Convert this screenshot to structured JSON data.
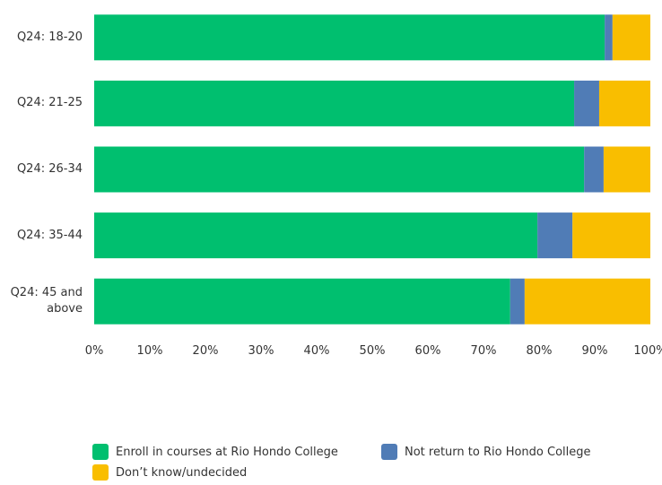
{
  "chart_data": {
    "type": "stacked-bar-horizontal",
    "categories": [
      "Q24: 18-20",
      "Q24: 21-25",
      "Q24: 26-34",
      "Q24: 35-44",
      "Q24: 45 and above"
    ],
    "series": [
      {
        "name": "Enroll in courses at Rio Hondo College",
        "color": "#00bf6f",
        "values": [
          91.8,
          86.3,
          88.1,
          79.7,
          74.8
        ]
      },
      {
        "name": "Not return to Rio Hondo College",
        "color": "#507cb6",
        "values": [
          1.4,
          4.5,
          3.5,
          6.3,
          2.6
        ]
      },
      {
        "name": "Don’t know/undecided",
        "color": "#f9be00",
        "values": [
          6.8,
          9.2,
          8.4,
          14.0,
          22.6
        ]
      }
    ],
    "xlim": [
      0,
      100
    ],
    "xticks": [
      {
        "value": 0,
        "label": "0%"
      },
      {
        "value": 10,
        "label": "10%"
      },
      {
        "value": 20,
        "label": "20%"
      },
      {
        "value": 30,
        "label": "30%"
      },
      {
        "value": 40,
        "label": "40%"
      },
      {
        "value": 50,
        "label": "50%"
      },
      {
        "value": 60,
        "label": "60%"
      },
      {
        "value": 70,
        "label": "70%"
      },
      {
        "value": 80,
        "label": "80%"
      },
      {
        "value": 90,
        "label": "90%"
      },
      {
        "value": 100,
        "label": "100%"
      }
    ]
  }
}
